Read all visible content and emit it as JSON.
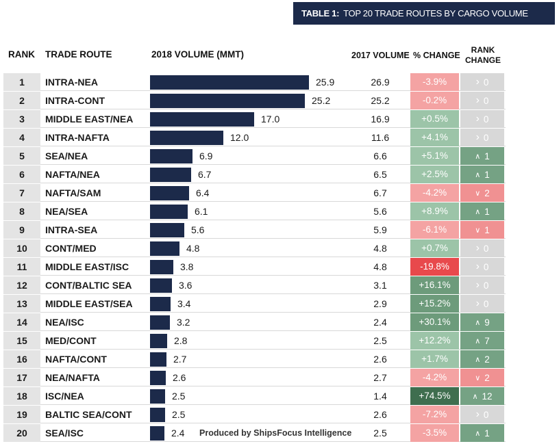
{
  "banner": {
    "label": "TABLE 1:",
    "title": "TOP 20 TRADE ROUTES BY CARGO VOLUME"
  },
  "headers": {
    "rank": "RANK",
    "route": "TRADE ROUTE",
    "vol2018": "2018 VOLUME (MMT)",
    "vol2017": "2017 VOLUME",
    "pct": "% CHANGE",
    "rank_change_1": "RANK",
    "rank_change_2": "CHANGE"
  },
  "credit": "Produced by ShipsFocus Intelligence",
  "colors": {
    "bar": "#1c2a4a",
    "pct_light_red": "#f4a3a3",
    "pct_dark_red": "#e8494c",
    "pct_light_green": "#9cc4a8",
    "pct_mid_green": "#6d9b7b",
    "pct_dark_green": "#3f6e4f",
    "rank_up": "#75a284",
    "rank_down": "#f09192",
    "rank_same": "#d8d8d8"
  },
  "chart_data": {
    "type": "bar",
    "title": "TOP 20 TRADE ROUTES BY CARGO VOLUME",
    "xlabel": "2018 VOLUME (MMT)",
    "ylabel": "TRADE ROUTE",
    "xlim": [
      0,
      25.9
    ],
    "grid": false,
    "rows": [
      {
        "rank": "1",
        "route": "INTRA-NEA",
        "v2018": 25.9,
        "v2017": 26.9,
        "pct": "-3.9%",
        "pct_tone": "pct_light_red",
        "rank_dir": "same",
        "rank_change": "0"
      },
      {
        "rank": "2",
        "route": "INTRA-CONT",
        "v2018": 25.2,
        "v2017": 25.2,
        "pct": "-0.2%",
        "pct_tone": "pct_light_red",
        "rank_dir": "same",
        "rank_change": "0"
      },
      {
        "rank": "3",
        "route": "MIDDLE EAST/NEA",
        "v2018": 17.0,
        "v2017": 16.9,
        "pct": "+0.5%",
        "pct_tone": "pct_light_green",
        "rank_dir": "same",
        "rank_change": "0"
      },
      {
        "rank": "4",
        "route": "INTRA-NAFTA",
        "v2018": 12.0,
        "v2017": 11.6,
        "pct": "+4.1%",
        "pct_tone": "pct_light_green",
        "rank_dir": "same",
        "rank_change": "0"
      },
      {
        "rank": "5",
        "route": "SEA/NEA",
        "v2018": 6.9,
        "v2017": 6.6,
        "pct": "+5.1%",
        "pct_tone": "pct_light_green",
        "rank_dir": "up",
        "rank_change": "1"
      },
      {
        "rank": "6",
        "route": "NAFTA/NEA",
        "v2018": 6.7,
        "v2017": 6.5,
        "pct": "+2.5%",
        "pct_tone": "pct_light_green",
        "rank_dir": "up",
        "rank_change": "1"
      },
      {
        "rank": "7",
        "route": "NAFTA/SAM",
        "v2018": 6.4,
        "v2017": 6.7,
        "pct": "-4.2%",
        "pct_tone": "pct_light_red",
        "rank_dir": "down",
        "rank_change": "2"
      },
      {
        "rank": "8",
        "route": "NEA/SEA",
        "v2018": 6.1,
        "v2017": 5.6,
        "pct": "+8.9%",
        "pct_tone": "pct_light_green",
        "rank_dir": "up",
        "rank_change": "1"
      },
      {
        "rank": "9",
        "route": "INTRA-SEA",
        "v2018": 5.6,
        "v2017": 5.9,
        "pct": "-6.1%",
        "pct_tone": "pct_light_red",
        "rank_dir": "down",
        "rank_change": "1"
      },
      {
        "rank": "10",
        "route": "CONT/MED",
        "v2018": 4.8,
        "v2017": 4.8,
        "pct": "+0.7%",
        "pct_tone": "pct_light_green",
        "rank_dir": "same",
        "rank_change": "0"
      },
      {
        "rank": "11",
        "route": "MIDDLE EAST/ISC",
        "v2018": 3.8,
        "v2017": 4.8,
        "pct": "-19.8%",
        "pct_tone": "pct_dark_red",
        "rank_dir": "same",
        "rank_change": "0"
      },
      {
        "rank": "12",
        "route": "CONT/BALTIC SEA",
        "v2018": 3.6,
        "v2017": 3.1,
        "pct": "+16.1%",
        "pct_tone": "pct_mid_green",
        "rank_dir": "same",
        "rank_change": "0"
      },
      {
        "rank": "13",
        "route": "MIDDLE EAST/SEA",
        "v2018": 3.4,
        "v2017": 2.9,
        "pct": "+15.2%",
        "pct_tone": "pct_mid_green",
        "rank_dir": "same",
        "rank_change": "0"
      },
      {
        "rank": "14",
        "route": "NEA/ISC",
        "v2018": 3.2,
        "v2017": 2.4,
        "pct": "+30.1%",
        "pct_tone": "pct_mid_green",
        "rank_dir": "up",
        "rank_change": "9"
      },
      {
        "rank": "15",
        "route": "MED/CONT",
        "v2018": 2.8,
        "v2017": 2.5,
        "pct": "+12.2%",
        "pct_tone": "pct_light_green",
        "rank_dir": "up",
        "rank_change": "7"
      },
      {
        "rank": "16",
        "route": "NAFTA/CONT",
        "v2018": 2.7,
        "v2017": 2.6,
        "pct": "+1.7%",
        "pct_tone": "pct_light_green",
        "rank_dir": "up",
        "rank_change": "2"
      },
      {
        "rank": "17",
        "route": "NEA/NAFTA",
        "v2018": 2.6,
        "v2017": 2.7,
        "pct": "-4.2%",
        "pct_tone": "pct_light_red",
        "rank_dir": "down",
        "rank_change": "2"
      },
      {
        "rank": "18",
        "route": "ISC/NEA",
        "v2018": 2.5,
        "v2017": 1.4,
        "pct": "+74.5%",
        "pct_tone": "pct_dark_green",
        "rank_dir": "up",
        "rank_change": "12"
      },
      {
        "rank": "19",
        "route": "BALTIC SEA/CONT",
        "v2018": 2.5,
        "v2017": 2.6,
        "pct": "-7.2%",
        "pct_tone": "pct_light_red",
        "rank_dir": "same",
        "rank_change": "0"
      },
      {
        "rank": "20",
        "route": "SEA/ISC",
        "v2018": 2.4,
        "v2017": 2.5,
        "pct": "-3.5%",
        "pct_tone": "pct_light_red",
        "rank_dir": "up",
        "rank_change": "1"
      }
    ]
  }
}
